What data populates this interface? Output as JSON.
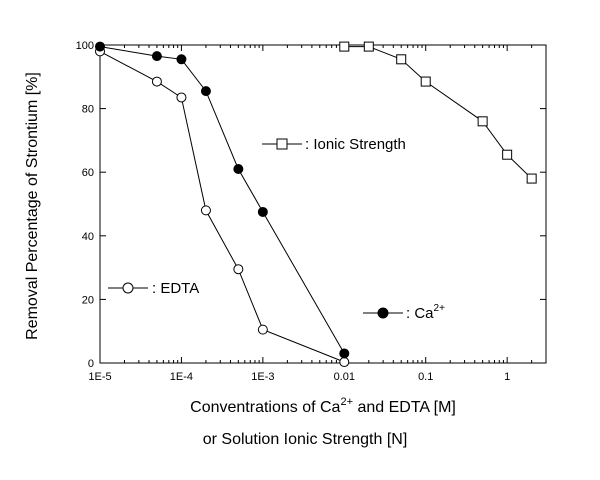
{
  "chart_data": {
    "type": "line",
    "x_scale": "log",
    "xlim": [
      1e-05,
      3
    ],
    "ylim": [
      0,
      100
    ],
    "x_ticks": [
      1e-05,
      0.0001,
      0.001,
      0.01,
      0.1,
      1
    ],
    "x_tick_labels": [
      "1E-5",
      "1E-4",
      "1E-3",
      "0.01",
      "0.1",
      "1"
    ],
    "y_ticks": [
      0,
      20,
      40,
      60,
      80,
      100
    ],
    "y_tick_labels": [
      "0",
      "20",
      "40",
      "60",
      "80",
      "100"
    ],
    "ylabel": "Removal Percentage of Strontium [%]",
    "xlabel_line1_pre": "Conventrations of Ca",
    "xlabel_line1_sup": "2+",
    "xlabel_line1_post": " and EDTA [M]",
    "xlabel_line2": "or Solution Ionic Strength [N]",
    "grid": false,
    "series": [
      {
        "name": ": EDTA",
        "marker": "open-circle",
        "x": [
          1e-05,
          5e-05,
          0.0001,
          0.0002,
          0.0005,
          0.001,
          0.01
        ],
        "y": [
          98,
          88.5,
          83.5,
          48,
          29.5,
          10.5,
          0.3
        ]
      },
      {
        "name": ": Ca",
        "name_sup": "2+",
        "marker": "filled-circle",
        "x": [
          1e-05,
          5e-05,
          0.0001,
          0.0002,
          0.0005,
          0.001,
          0.01
        ],
        "y": [
          99.5,
          96.5,
          95.5,
          85.5,
          61,
          47.5,
          3
        ]
      },
      {
        "name": ": Ionic Strength",
        "marker": "open-square",
        "x": [
          0.01,
          0.02,
          0.05,
          0.1,
          0.5,
          1,
          2
        ],
        "y": [
          99.5,
          99.5,
          95.5,
          88.5,
          76,
          65.5,
          58
        ]
      }
    ]
  }
}
